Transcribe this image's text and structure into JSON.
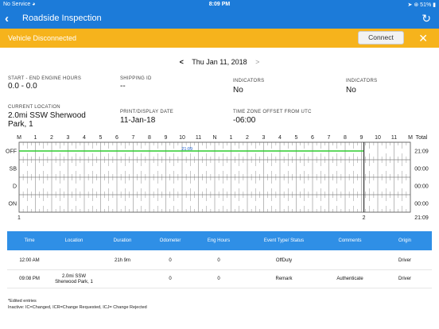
{
  "status_bar": {
    "carrier": "No Service",
    "wifi_icon": "wifi-icon",
    "time": "8:09 PM",
    "battery": "51%"
  },
  "nav": {
    "title": "Roadside Inspection"
  },
  "alert": {
    "message": "Vehicle Disconnected",
    "connect_label": "Connect"
  },
  "date_nav": {
    "prev": "<",
    "date": "Thu Jan 11, 2018",
    "next": ">"
  },
  "info": {
    "start_end_label": "START - END ENGINE HOURS",
    "start_end_value": "0.0 - 0.0",
    "shipping_label": "SHIPPING ID",
    "shipping_value": "--",
    "unid_label": "INDICATORS",
    "unid_value": "No",
    "malf_label": "INDICATORS",
    "malf_value": "No",
    "location_label": "CURRENT LOCATION",
    "location_value": "2.0mi SSW Sherwood Park,  1",
    "print_label": "PRINT/DISPLAY DATE",
    "print_value": "11-Jan-18",
    "tz_label": "TIME ZONE OFFSET FROM UTC",
    "tz_value": "-06:00"
  },
  "graph": {
    "hour_labels": [
      "M",
      "1",
      "2",
      "3",
      "4",
      "5",
      "6",
      "7",
      "8",
      "9",
      "10",
      "11",
      "N",
      "1",
      "2",
      "3",
      "4",
      "5",
      "6",
      "7",
      "8",
      "9",
      "10",
      "11",
      "M"
    ],
    "total_label": "Total",
    "rows": [
      {
        "label": "OFF",
        "total": "21:09"
      },
      {
        "label": "SB",
        "total": "00:00"
      },
      {
        "label": "D",
        "total": "00:00"
      },
      {
        "label": "ON",
        "total": "00:00"
      }
    ],
    "off_duration_label": "21:09",
    "bottom_left": "1",
    "bottom_mid": "2",
    "grand_total": "21:09",
    "duty_line_color": "#2ecc2e"
  },
  "events": {
    "headers": [
      "Time",
      "Location",
      "Duration",
      "Odometer",
      "Eng Hours",
      "Event Type/ Status",
      "Comments",
      "Origin"
    ],
    "rows": [
      [
        "12:00 AM",
        "",
        "21h 9m",
        "0",
        "0",
        "OffDuty",
        "",
        "Driver"
      ],
      [
        "09:08 PM",
        "2.0mi SSW Sherwood Park,  1",
        "",
        "0",
        "0",
        "Remark",
        "Authenticate",
        "Driver"
      ]
    ]
  },
  "footnote": {
    "line1": "*Edited entries",
    "line2": "Inactive: IC=Changed, ICR=Change Requested, ICJ= Change Rejected"
  }
}
